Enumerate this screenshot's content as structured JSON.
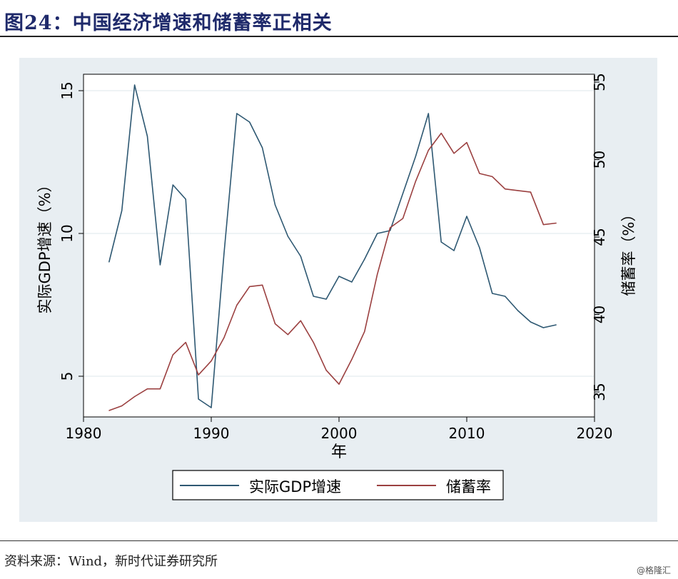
{
  "figure_label": "图24：",
  "figure_title": "中国经济增速和储蓄率正相关",
  "source": "资料来源：Wind，新时代证券研究所",
  "watermark": "@格隆汇",
  "colors": {
    "panel": "#e8eef2",
    "gdp": "#2e5872",
    "savings": "#9b4040",
    "grid": "#ffffff",
    "axis": "#000000"
  },
  "chart_data": {
    "type": "line",
    "xlabel": "年",
    "ylabel_left": "实际GDP增速（%）",
    "ylabel_right": "储蓄率（%）",
    "xlim": [
      1980,
      2020
    ],
    "ylim_left": [
      3.5,
      15.5
    ],
    "ylim_right": [
      33.5,
      55.5
    ],
    "xticks": [
      1980,
      1990,
      2000,
      2010,
      2020
    ],
    "yticks_left": [
      5,
      10,
      15
    ],
    "yticks_right": [
      35,
      40,
      45,
      50,
      55
    ],
    "grid": true,
    "legend_position": "bottom",
    "x": [
      1982,
      1983,
      1984,
      1985,
      1986,
      1987,
      1988,
      1989,
      1990,
      1991,
      1992,
      1993,
      1994,
      1995,
      1996,
      1997,
      1998,
      1999,
      2000,
      2001,
      2002,
      2003,
      2004,
      2005,
      2006,
      2007,
      2008,
      2009,
      2010,
      2011,
      2012,
      2013,
      2014,
      2015,
      2016,
      2017
    ],
    "series": [
      {
        "name": "实际GDP增速",
        "axis": "left",
        "values": [
          9.0,
          10.8,
          15.2,
          13.4,
          8.9,
          11.7,
          11.2,
          4.2,
          3.9,
          9.3,
          14.2,
          13.9,
          13.0,
          11.0,
          9.9,
          9.2,
          7.8,
          7.7,
          8.5,
          8.3,
          9.1,
          10.0,
          10.1,
          11.4,
          12.7,
          14.2,
          9.7,
          9.4,
          10.6,
          9.5,
          7.9,
          7.8,
          7.3,
          6.9,
          6.7,
          6.8
        ]
      },
      {
        "name": "储蓄率",
        "axis": "right",
        "values": [
          33.8,
          34.1,
          34.7,
          35.2,
          35.2,
          37.4,
          38.2,
          36.1,
          37.0,
          38.5,
          40.6,
          41.8,
          41.9,
          39.4,
          38.7,
          39.6,
          38.2,
          36.4,
          35.5,
          37.1,
          38.9,
          42.6,
          45.6,
          46.2,
          48.6,
          50.6,
          51.7,
          50.4,
          51.1,
          49.1,
          48.9,
          48.1,
          48.0,
          47.9,
          45.8,
          45.9
        ]
      }
    ]
  }
}
